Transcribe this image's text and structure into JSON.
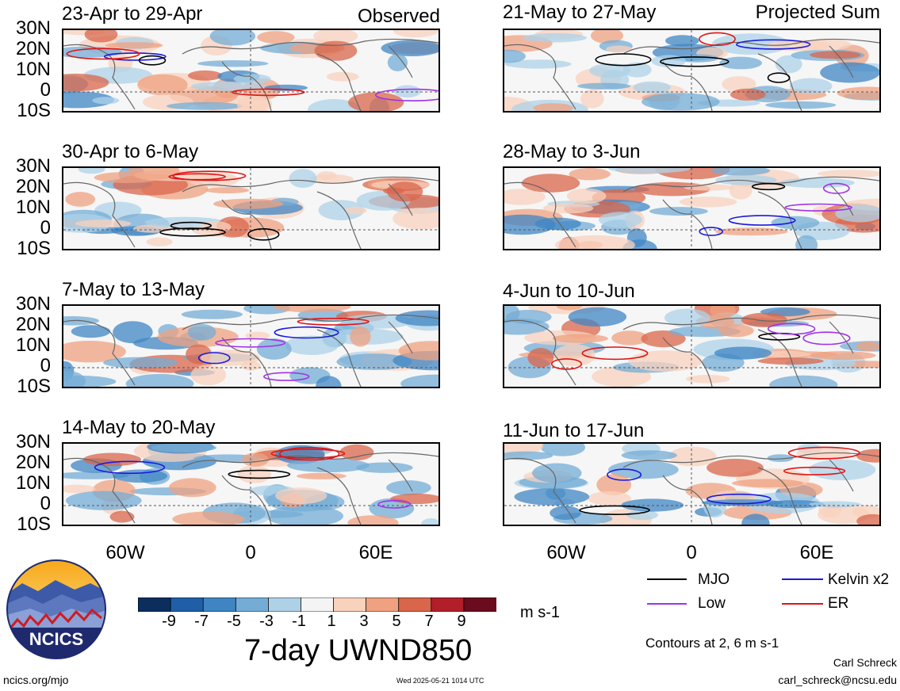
{
  "observed_label": "Observed",
  "projected_label": "Projected Sum",
  "panels_left": [
    {
      "title": "23-Apr to 29-Apr"
    },
    {
      "title": "30-Apr to 6-May"
    },
    {
      "title": "7-May to 13-May"
    },
    {
      "title": "14-May to 20-May"
    }
  ],
  "panels_right": [
    {
      "title": "21-May to 27-May"
    },
    {
      "title": "28-May to 3-Jun"
    },
    {
      "title": "4-Jun to 10-Jun"
    },
    {
      "title": "11-Jun to 17-Jun"
    }
  ],
  "lat_labels": [
    "30N",
    "20N",
    "10N",
    "0",
    "10S"
  ],
  "lon_labels": [
    "60W",
    "0",
    "60E"
  ],
  "colorbar": {
    "ticks": [
      "-9",
      "-7",
      "-5",
      "-3",
      "-1",
      "1",
      "3",
      "5",
      "7",
      "9"
    ],
    "colors": [
      "#0b2e5e",
      "#1f5fa8",
      "#3f85c4",
      "#74acd6",
      "#aed1e8",
      "#f4f4f4",
      "#f8d2bd",
      "#efa180",
      "#d9654b",
      "#b31e2b",
      "#6b0b1e"
    ],
    "units": "m s-1"
  },
  "main_title": "7-day UWND850",
  "legend": {
    "mjo": "MJO",
    "kelvin": "Kelvin x2",
    "low": "Low",
    "er": "ER",
    "colors": {
      "mjo": "#000000",
      "kelvin": "#1a1adc",
      "low": "#a032e6",
      "er": "#e01414"
    }
  },
  "contours_note": "Contours at 2, 6 m s-1",
  "logo_text": "NCICS",
  "url": "ncics.org/mjo",
  "timestamp": "Wed 2025-05-21 1014 UTC",
  "author": "Carl Schreck",
  "email": "carl_schreck@ncsu.edu"
}
